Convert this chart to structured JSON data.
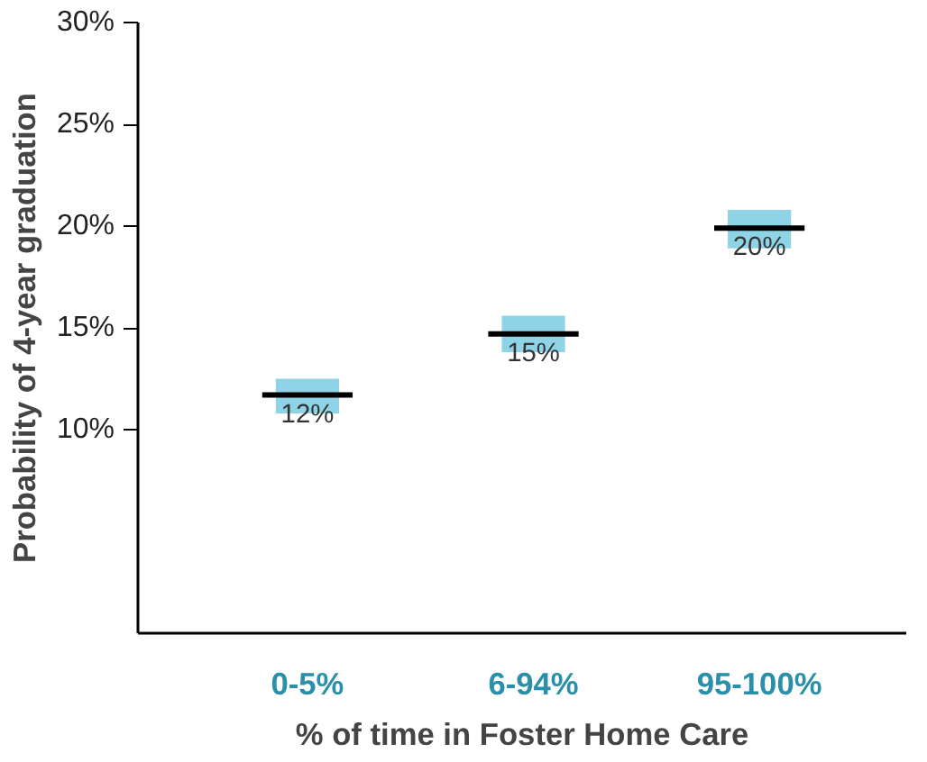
{
  "chart_data": {
    "type": "box",
    "xlabel": "% of time in Foster Home Care",
    "ylabel": "Probability of 4-year graduation",
    "categories": [
      "0-5%",
      "6-94%",
      "95-100%"
    ],
    "boxes": [
      {
        "low": 10.8,
        "q1": 10.8,
        "median": 11.7,
        "q3": 12.5,
        "high": 12.5
      },
      {
        "low": 13.8,
        "q1": 13.8,
        "median": 14.7,
        "q3": 15.6,
        "high": 15.6
      },
      {
        "low": 18.9,
        "q1": 18.9,
        "median": 19.9,
        "q3": 20.8,
        "high": 20.8
      }
    ],
    "value_labels": [
      "12%",
      "15%",
      "20%"
    ],
    "color": "#8fd3e6",
    "ylim": [
      0,
      30
    ],
    "yticks": [
      {
        "value": 10,
        "label": "10%"
      },
      {
        "value": 15,
        "label": "15%"
      },
      {
        "value": 20,
        "label": "20%"
      },
      {
        "value": 25,
        "label": "25%"
      },
      {
        "value": 30,
        "label": "30%"
      }
    ],
    "grid": false
  }
}
